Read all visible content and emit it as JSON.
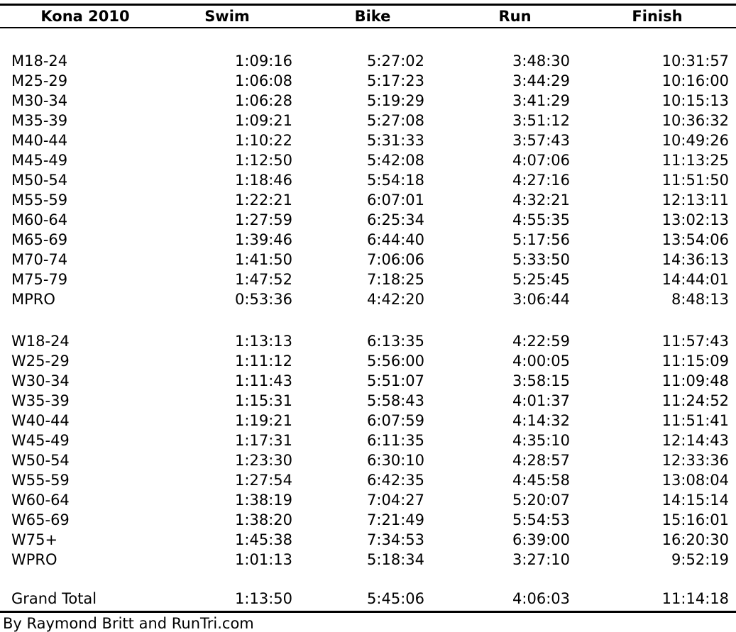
{
  "chart_data": {
    "type": "table",
    "title": "Kona 2010",
    "columns": [
      "Kona 2010",
      "Swim",
      "Bike",
      "Run",
      "Finish"
    ],
    "men": [
      {
        "group": "M18-24",
        "swim": "1:09:16",
        "bike": "5:27:02",
        "run": "3:48:30",
        "finish": "10:31:57"
      },
      {
        "group": "M25-29",
        "swim": "1:06:08",
        "bike": "5:17:23",
        "run": "3:44:29",
        "finish": "10:16:00"
      },
      {
        "group": "M30-34",
        "swim": "1:06:28",
        "bike": "5:19:29",
        "run": "3:41:29",
        "finish": "10:15:13"
      },
      {
        "group": "M35-39",
        "swim": "1:09:21",
        "bike": "5:27:08",
        "run": "3:51:12",
        "finish": "10:36:32"
      },
      {
        "group": "M40-44",
        "swim": "1:10:22",
        "bike": "5:31:33",
        "run": "3:57:43",
        "finish": "10:49:26"
      },
      {
        "group": "M45-49",
        "swim": "1:12:50",
        "bike": "5:42:08",
        "run": "4:07:06",
        "finish": "11:13:25"
      },
      {
        "group": "M50-54",
        "swim": "1:18:46",
        "bike": "5:54:18",
        "run": "4:27:16",
        "finish": "11:51:50"
      },
      {
        "group": "M55-59",
        "swim": "1:22:21",
        "bike": "6:07:01",
        "run": "4:32:21",
        "finish": "12:13:11"
      },
      {
        "group": "M60-64",
        "swim": "1:27:59",
        "bike": "6:25:34",
        "run": "4:55:35",
        "finish": "13:02:13"
      },
      {
        "group": "M65-69",
        "swim": "1:39:46",
        "bike": "6:44:40",
        "run": "5:17:56",
        "finish": "13:54:06"
      },
      {
        "group": "M70-74",
        "swim": "1:41:50",
        "bike": "7:06:06",
        "run": "5:33:50",
        "finish": "14:36:13"
      },
      {
        "group": "M75-79",
        "swim": "1:47:52",
        "bike": "7:18:25",
        "run": "5:25:45",
        "finish": "14:44:01"
      },
      {
        "group": "MPRO",
        "swim": "0:53:36",
        "bike": "4:42:20",
        "run": "3:06:44",
        "finish": "8:48:13"
      }
    ],
    "women": [
      {
        "group": "W18-24",
        "swim": "1:13:13",
        "bike": "6:13:35",
        "run": "4:22:59",
        "finish": "11:57:43"
      },
      {
        "group": "W25-29",
        "swim": "1:11:12",
        "bike": "5:56:00",
        "run": "4:00:05",
        "finish": "11:15:09"
      },
      {
        "group": "W30-34",
        "swim": "1:11:43",
        "bike": "5:51:07",
        "run": "3:58:15",
        "finish": "11:09:48"
      },
      {
        "group": "W35-39",
        "swim": "1:15:31",
        "bike": "5:58:43",
        "run": "4:01:37",
        "finish": "11:24:52"
      },
      {
        "group": "W40-44",
        "swim": "1:19:21",
        "bike": "6:07:59",
        "run": "4:14:32",
        "finish": "11:51:41"
      },
      {
        "group": "W45-49",
        "swim": "1:17:31",
        "bike": "6:11:35",
        "run": "4:35:10",
        "finish": "12:14:43"
      },
      {
        "group": "W50-54",
        "swim": "1:23:30",
        "bike": "6:30:10",
        "run": "4:28:57",
        "finish": "12:33:36"
      },
      {
        "group": "W55-59",
        "swim": "1:27:54",
        "bike": "6:42:35",
        "run": "4:45:58",
        "finish": "13:08:04"
      },
      {
        "group": "W60-64",
        "swim": "1:38:19",
        "bike": "7:04:27",
        "run": "5:20:07",
        "finish": "14:15:14"
      },
      {
        "group": "W65-69",
        "swim": "1:38:20",
        "bike": "7:21:49",
        "run": "5:54:53",
        "finish": "15:16:01"
      },
      {
        "group": "W75+",
        "swim": "1:45:38",
        "bike": "7:34:53",
        "run": "6:39:00",
        "finish": "16:20:30"
      },
      {
        "group": "WPRO",
        "swim": "1:01:13",
        "bike": "5:18:34",
        "run": "3:27:10",
        "finish": "9:52:19"
      }
    ],
    "grand_total": {
      "group": "Grand Total",
      "swim": "1:13:50",
      "bike": "5:45:06",
      "run": "4:06:03",
      "finish": "11:14:18"
    }
  },
  "footer": {
    "credit": "By Raymond Britt and RunTri.com"
  }
}
